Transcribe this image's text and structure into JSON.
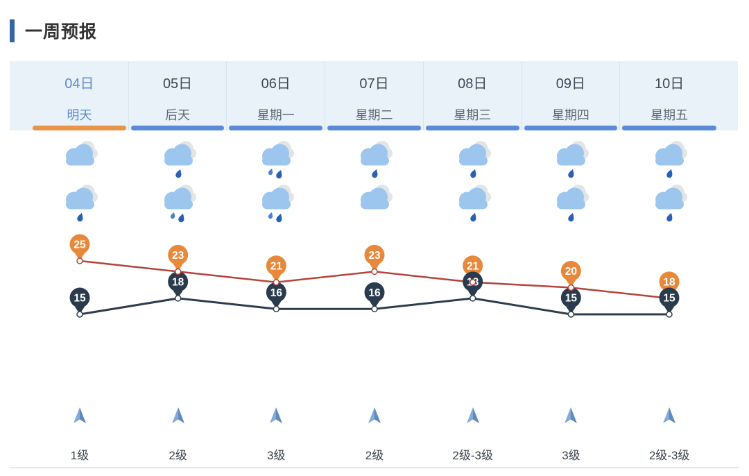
{
  "header": {
    "title": "一周预报"
  },
  "colors": {
    "accent_bar": "#3465a4",
    "header_bg": "#e9f1f9",
    "tab_selected_text": "#5e8cce",
    "tab_date_text": "#3e4753",
    "tab_weekday_text": "#5f6a76",
    "underline_selected": "#e8954a",
    "underline_default": "#5b8bd8",
    "divider": "#d9e4ef",
    "cloud_blue": "#9cc6ee",
    "cloud_gray": "#e2e4e6",
    "raindrop_dark": "#2a5fb4",
    "raindrop_light": "#4a80cd",
    "wind_arrow_left": "#83aad8",
    "wind_arrow_right": "#5e8abd",
    "hairline": "#e4e9ef"
  },
  "forecast": {
    "days": [
      {
        "date": "04日",
        "weekday": "明天",
        "selected": true,
        "day_icon": "cloudy",
        "night_icon": "light-rain",
        "wind_icon": "up-arrow",
        "wind_level": "1级"
      },
      {
        "date": "05日",
        "weekday": "后天",
        "selected": false,
        "day_icon": "light-rain",
        "night_icon": "moderate-rain",
        "wind_icon": "up-arrow",
        "wind_level": "2级"
      },
      {
        "date": "06日",
        "weekday": "星期一",
        "selected": false,
        "day_icon": "moderate-rain",
        "night_icon": "moderate-rain",
        "wind_icon": "up-arrow",
        "wind_level": "3级"
      },
      {
        "date": "07日",
        "weekday": "星期二",
        "selected": false,
        "day_icon": "light-rain",
        "night_icon": "cloudy",
        "wind_icon": "up-arrow",
        "wind_level": "2级"
      },
      {
        "date": "08日",
        "weekday": "星期三",
        "selected": false,
        "day_icon": "light-rain",
        "night_icon": "light-rain",
        "wind_icon": "up-arrow",
        "wind_level": "2级-3级"
      },
      {
        "date": "09日",
        "weekday": "星期四",
        "selected": false,
        "day_icon": "light-rain",
        "night_icon": "light-rain",
        "wind_icon": "up-arrow",
        "wind_level": "3级"
      },
      {
        "date": "10日",
        "weekday": "星期五",
        "selected": false,
        "day_icon": "light-rain",
        "night_icon": "light-rain",
        "wind_icon": "up-arrow",
        "wind_level": "2级-3级"
      }
    ]
  },
  "chart_data": {
    "type": "line",
    "categories": [
      "04日",
      "05日",
      "06日",
      "07日",
      "08日",
      "09日",
      "10日"
    ],
    "series": [
      {
        "name": "high",
        "values": [
          25,
          23,
          21,
          23,
          21,
          20,
          18
        ],
        "line_color": "#b5433c",
        "marker_color": "#e8883a"
      },
      {
        "name": "low",
        "values": [
          15,
          18,
          16,
          16,
          18,
          15,
          15
        ],
        "line_color": "#2e3d4e",
        "marker_color": "#2a3b4d"
      }
    ],
    "marker_style": "pin-balloon-with-value",
    "grid": false,
    "axes_visible": false,
    "legend": false
  }
}
